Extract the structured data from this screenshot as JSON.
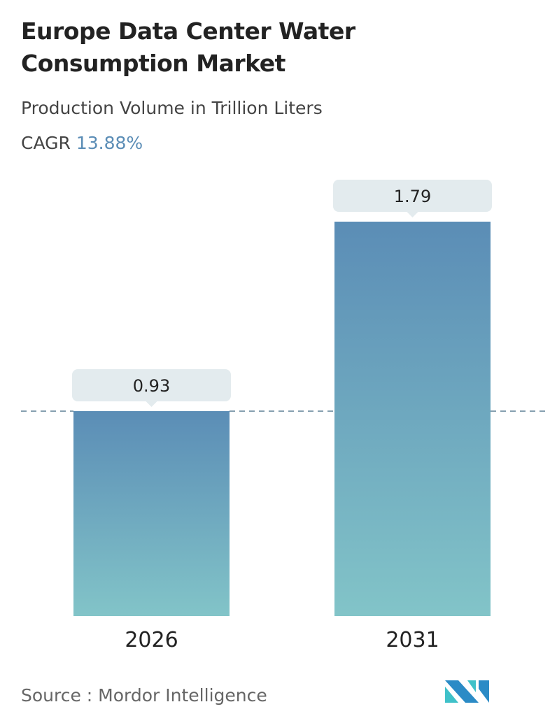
{
  "title": "Europe Data Center Water Consumption Market",
  "subtitle": "Production Volume in Trillion Liters",
  "cagr_label": "CAGR",
  "cagr_value": "13.88%",
  "source": "Source :  Mordor Intelligence",
  "colors": {
    "bar_top": "#5b8db6",
    "bar_bottom": "#82c4c8",
    "label_bg": "#e3ebee",
    "dash": "#5f8196"
  },
  "chart_data": {
    "type": "bar",
    "categories": [
      "2026",
      "2031"
    ],
    "values": [
      0.93,
      1.79
    ],
    "value_labels": [
      "0.93",
      "1.79"
    ],
    "reference_line": 0.93,
    "ylim": [
      0,
      1.79
    ],
    "grid": false,
    "xlabel": "",
    "ylabel": ""
  },
  "logo": "Mordor Intelligence"
}
